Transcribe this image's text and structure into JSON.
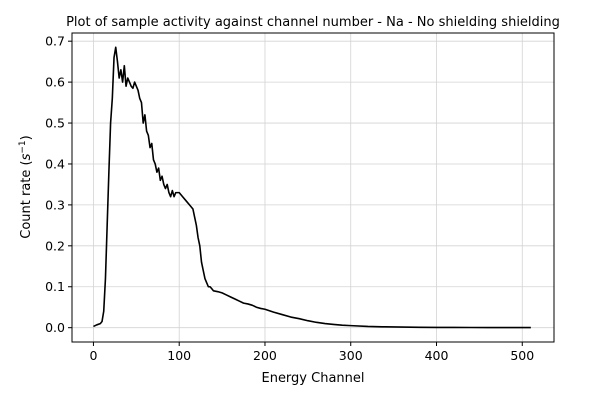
{
  "chart_data": {
    "type": "line",
    "title": "Plot of sample activity against channel number - Na - No shielding shielding",
    "xlabel": "Energy Channel",
    "ylabel_main": "Count rate (",
    "ylabel_base": "s",
    "ylabel_exp": "−1",
    "ylabel_close": ")",
    "xlim": [
      -25,
      537
    ],
    "ylim": [
      -0.035,
      0.72
    ],
    "xticks": [
      0,
      100,
      200,
      300,
      400,
      500
    ],
    "yticks": [
      0.0,
      0.1,
      0.2,
      0.3,
      0.4,
      0.5,
      0.6,
      0.7
    ],
    "xtick_labels": [
      "0",
      "100",
      "200",
      "300",
      "400",
      "500"
    ],
    "ytick_labels": [
      "0.0",
      "0.1",
      "0.2",
      "0.3",
      "0.4",
      "0.5",
      "0.6",
      "0.7"
    ],
    "grid": true,
    "line_color": "#000000",
    "grid_color": "#d3d3d3",
    "series": [
      {
        "x": [
          0,
          4,
          8,
          10,
          12,
          14,
          16,
          18,
          20,
          22,
          24,
          26,
          28,
          30,
          32,
          34,
          36,
          38,
          40,
          42,
          44,
          46,
          48,
          50,
          52,
          54,
          56,
          58,
          60,
          62,
          64,
          66,
          68,
          70,
          72,
          74,
          76,
          78,
          80,
          82,
          84,
          86,
          88,
          90,
          92,
          94,
          96,
          98,
          100,
          104,
          108,
          112,
          116,
          118,
          120,
          122,
          124,
          126,
          128,
          130,
          132,
          134,
          136,
          138,
          140,
          145,
          150,
          155,
          160,
          165,
          170,
          175,
          180,
          185,
          190,
          195,
          200,
          210,
          220,
          230,
          240,
          250,
          260,
          270,
          280,
          290,
          300,
          320,
          340,
          360,
          380,
          400,
          420,
          440,
          460,
          480,
          500,
          510
        ],
        "y": [
          0.003,
          0.007,
          0.01,
          0.015,
          0.04,
          0.12,
          0.25,
          0.38,
          0.5,
          0.56,
          0.66,
          0.685,
          0.65,
          0.61,
          0.63,
          0.6,
          0.64,
          0.59,
          0.61,
          0.6,
          0.59,
          0.585,
          0.6,
          0.59,
          0.58,
          0.56,
          0.55,
          0.5,
          0.52,
          0.48,
          0.47,
          0.44,
          0.45,
          0.41,
          0.4,
          0.38,
          0.39,
          0.36,
          0.37,
          0.35,
          0.34,
          0.35,
          0.33,
          0.32,
          0.335,
          0.32,
          0.33,
          0.33,
          0.33,
          0.32,
          0.31,
          0.3,
          0.29,
          0.27,
          0.25,
          0.22,
          0.2,
          0.16,
          0.14,
          0.12,
          0.11,
          0.1,
          0.1,
          0.095,
          0.09,
          0.088,
          0.085,
          0.08,
          0.075,
          0.07,
          0.065,
          0.06,
          0.058,
          0.055,
          0.05,
          0.047,
          0.045,
          0.038,
          0.032,
          0.026,
          0.022,
          0.017,
          0.013,
          0.01,
          0.008,
          0.006,
          0.005,
          0.003,
          0.002,
          0.0015,
          0.001,
          0.0007,
          0.0005,
          0.0004,
          0.0003,
          0.0002,
          0.0002,
          0.0002
        ]
      }
    ]
  }
}
